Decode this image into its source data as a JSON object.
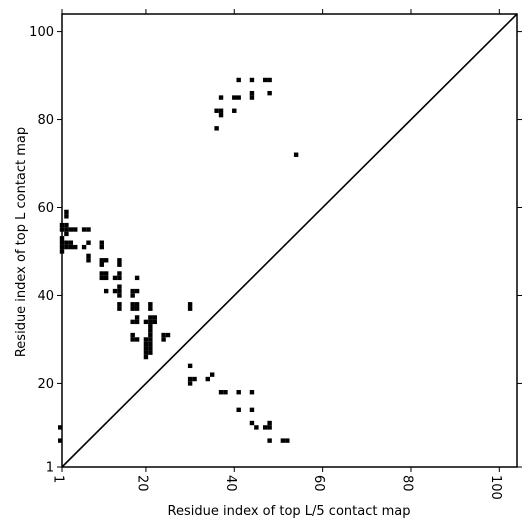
{
  "chart_data": {
    "type": "scatter",
    "title": "",
    "xlabel": "Residue index of top L/5 contact map",
    "ylabel": "Residue index of top L contact map",
    "xlim": [
      1,
      104
    ],
    "ylim": [
      1,
      104
    ],
    "x_ticks": [
      1,
      20,
      40,
      60,
      80,
      100
    ],
    "y_ticks": [
      1,
      20,
      40,
      60,
      80,
      100
    ],
    "x_tick_labels": [
      "1",
      "20",
      "40",
      "60",
      "80",
      "100"
    ],
    "y_tick_labels": [
      "1",
      "20",
      "40",
      "60",
      "80",
      "100"
    ],
    "diagonal": {
      "from": [
        1,
        1
      ],
      "to": [
        104,
        104
      ],
      "color": "#000000"
    },
    "marker": {
      "shape": "square",
      "size_units": 1,
      "color": "#000000"
    },
    "grid": false,
    "points": [
      [
        1,
        50
      ],
      [
        1,
        51
      ],
      [
        1,
        52
      ],
      [
        1,
        53
      ],
      [
        1,
        55
      ],
      [
        1,
        56
      ],
      [
        2,
        51
      ],
      [
        2,
        52
      ],
      [
        2,
        54
      ],
      [
        2,
        55
      ],
      [
        2,
        56
      ],
      [
        2,
        58
      ],
      [
        2,
        59
      ],
      [
        3,
        51
      ],
      [
        3,
        52
      ],
      [
        3,
        55
      ],
      [
        4,
        51
      ],
      [
        4,
        55
      ],
      [
        6,
        51
      ],
      [
        6,
        55
      ],
      [
        7,
        48
      ],
      [
        7,
        49
      ],
      [
        7,
        52
      ],
      [
        7,
        55
      ],
      [
        10,
        44
      ],
      [
        10,
        45
      ],
      [
        10,
        47
      ],
      [
        10,
        48
      ],
      [
        10,
        51
      ],
      [
        10,
        52
      ],
      [
        11,
        41
      ],
      [
        11,
        44
      ],
      [
        11,
        45
      ],
      [
        11,
        48
      ],
      [
        13,
        41
      ],
      [
        13,
        44
      ],
      [
        14,
        37
      ],
      [
        14,
        38
      ],
      [
        14,
        40
      ],
      [
        14,
        41
      ],
      [
        14,
        42
      ],
      [
        14,
        44
      ],
      [
        14,
        45
      ],
      [
        14,
        47
      ],
      [
        14,
        48
      ],
      [
        17,
        30
      ],
      [
        17,
        31
      ],
      [
        17,
        34
      ],
      [
        17,
        37
      ],
      [
        17,
        38
      ],
      [
        17,
        40
      ],
      [
        17,
        41
      ],
      [
        18,
        30
      ],
      [
        18,
        34
      ],
      [
        18,
        35
      ],
      [
        18,
        37
      ],
      [
        18,
        38
      ],
      [
        18,
        41
      ],
      [
        18,
        44
      ],
      [
        20,
        26
      ],
      [
        20,
        27
      ],
      [
        20,
        28
      ],
      [
        20,
        29
      ],
      [
        20,
        30
      ],
      [
        20,
        34
      ],
      [
        21,
        27
      ],
      [
        21,
        28
      ],
      [
        21,
        29
      ],
      [
        21,
        30
      ],
      [
        21,
        31
      ],
      [
        21,
        32
      ],
      [
        21,
        33
      ],
      [
        21,
        34
      ],
      [
        21,
        35
      ],
      [
        21,
        37
      ],
      [
        21,
        38
      ],
      [
        22,
        34
      ],
      [
        22,
        35
      ],
      [
        24,
        30
      ],
      [
        24,
        31
      ],
      [
        25,
        31
      ],
      [
        30,
        20
      ],
      [
        30,
        21
      ],
      [
        30,
        24
      ],
      [
        30,
        37
      ],
      [
        30,
        38
      ],
      [
        31,
        21
      ],
      [
        34,
        21
      ],
      [
        35,
        22
      ],
      [
        36,
        78
      ],
      [
        36,
        82
      ],
      [
        37,
        18
      ],
      [
        37,
        81
      ],
      [
        37,
        82
      ],
      [
        37,
        85
      ],
      [
        38,
        18
      ],
      [
        40,
        82
      ],
      [
        40,
        85
      ],
      [
        41,
        14
      ],
      [
        41,
        18
      ],
      [
        41,
        85
      ],
      [
        41,
        89
      ],
      [
        44,
        11
      ],
      [
        44,
        14
      ],
      [
        44,
        18
      ],
      [
        44,
        85
      ],
      [
        44,
        86
      ],
      [
        44,
        89
      ],
      [
        45,
        10
      ],
      [
        47,
        10
      ],
      [
        47,
        89
      ],
      [
        48,
        7
      ],
      [
        48,
        10
      ],
      [
        48,
        11
      ],
      [
        48,
        86
      ],
      [
        48,
        89
      ],
      [
        51,
        7
      ],
      [
        52,
        7
      ],
      [
        54,
        72
      ],
      [
        0.6,
        7
      ],
      [
        0.6,
        10
      ]
    ]
  }
}
